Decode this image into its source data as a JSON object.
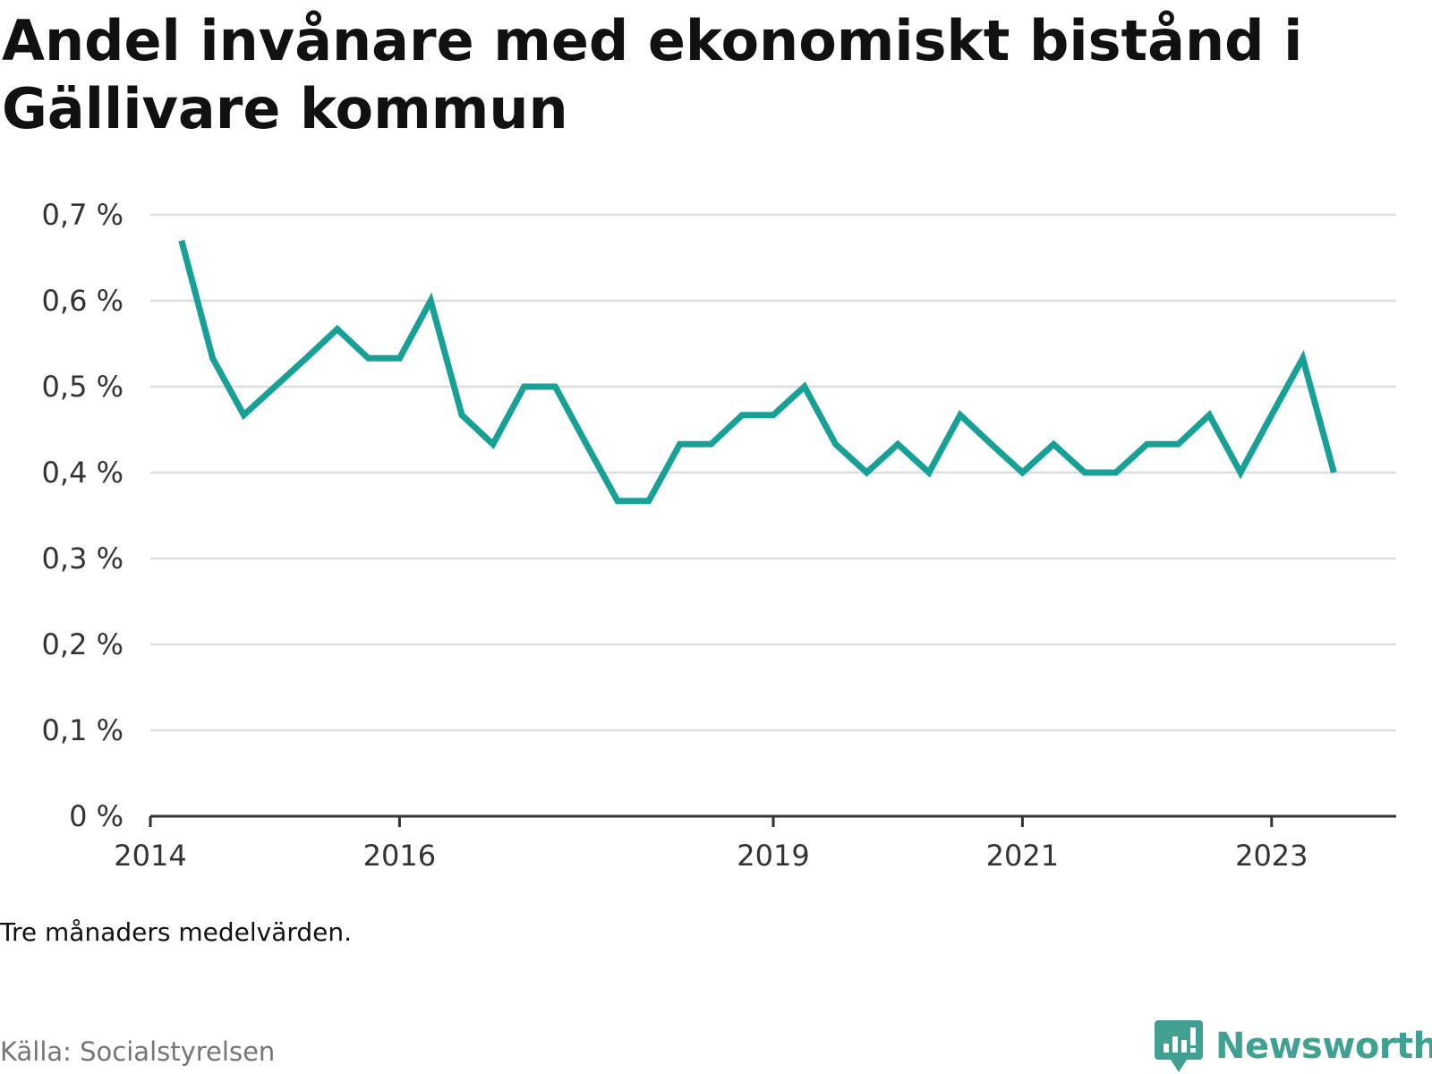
{
  "chart_data": {
    "type": "line",
    "title": "Andel invånare med ekonomiskt bistånd i Gällivare kommun",
    "ylim": [
      0,
      0.7
    ],
    "y_ticks": [
      0,
      0.1,
      0.2,
      0.3,
      0.4,
      0.5,
      0.6,
      0.7
    ],
    "y_tick_labels": [
      "0 %",
      "0,1 %",
      "0,2 %",
      "0,3 %",
      "0,4 %",
      "0,5 %",
      "0,6 %",
      "0,7 %"
    ],
    "x_range": [
      "2014-01-01",
      "2024-01-01"
    ],
    "x_ticks": [
      "2014-01-01",
      "2016-01-01",
      "2019-01-01",
      "2021-01-01",
      "2023-01-01"
    ],
    "x_tick_labels": [
      "2014",
      "2016",
      "2019",
      "2021",
      "2023"
    ],
    "grid": true,
    "color": "#16a096",
    "x": [
      "2014-04",
      "2014-07",
      "2014-10",
      "2015-01",
      "2015-04",
      "2015-07",
      "2015-10",
      "2016-01",
      "2016-04",
      "2016-07",
      "2016-10",
      "2017-01",
      "2017-04",
      "2017-07",
      "2017-10",
      "2018-01",
      "2018-04",
      "2018-07",
      "2018-10",
      "2019-01",
      "2019-04",
      "2019-07",
      "2019-10",
      "2020-01",
      "2020-04",
      "2020-07",
      "2020-10",
      "2021-01",
      "2021-04",
      "2021-07",
      "2021-10",
      "2022-01",
      "2022-04",
      "2022-07",
      "2022-10",
      "2023-01",
      "2023-04",
      "2023-07"
    ],
    "values": [
      0.67,
      0.533,
      0.467,
      0.5,
      0.533,
      0.567,
      0.533,
      0.533,
      0.6,
      0.467,
      0.433,
      0.5,
      0.5,
      0.433,
      0.367,
      0.367,
      0.433,
      0.433,
      0.467,
      0.467,
      0.5,
      0.433,
      0.4,
      0.433,
      0.4,
      0.467,
      0.433,
      0.4,
      0.433,
      0.4,
      0.4,
      0.433,
      0.433,
      0.467,
      0.4,
      0.467,
      0.533,
      0.4
    ]
  },
  "note": "Tre månaders medelvärden.",
  "source": "Källa: Socialstyrelsen",
  "brand": {
    "name": "Newsworthy",
    "color": "#40a091",
    "icon": "newsworthy-logo-icon"
  }
}
